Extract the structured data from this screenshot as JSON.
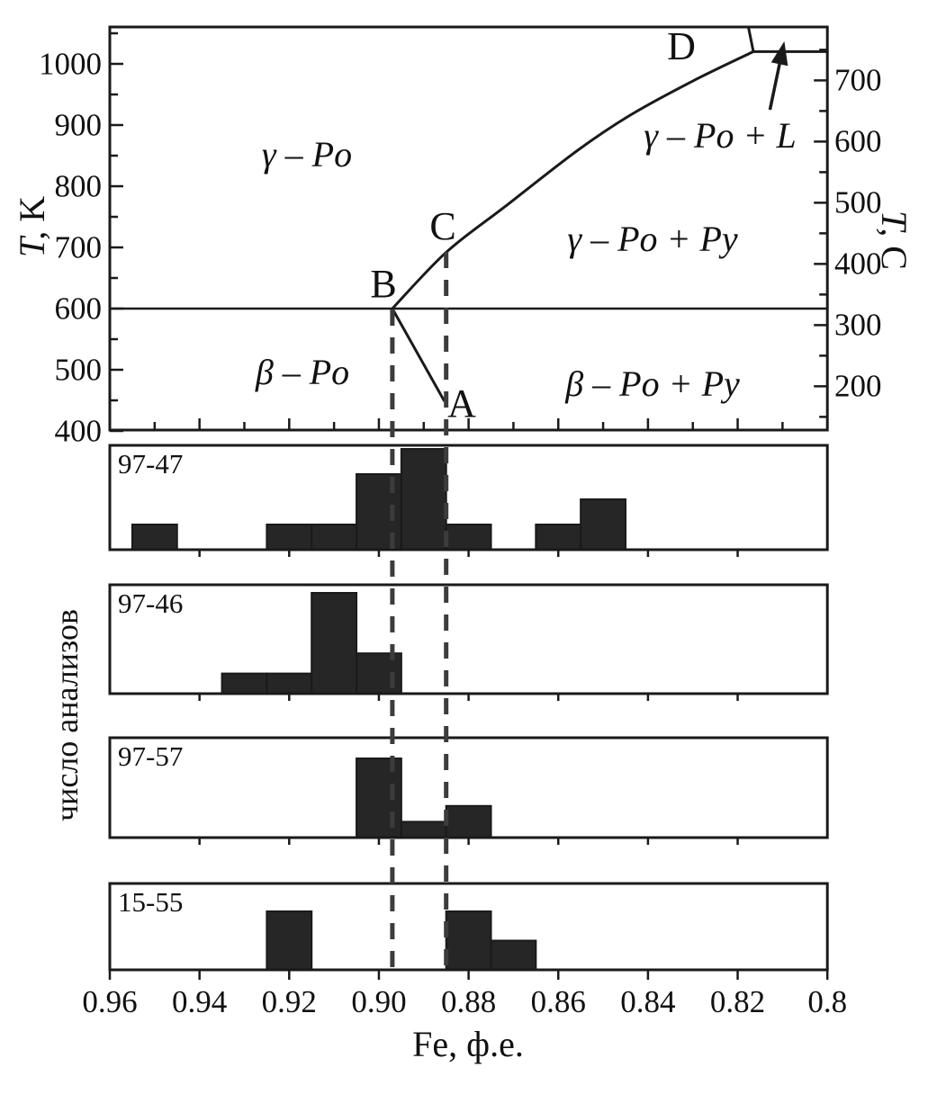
{
  "figure": {
    "background": "#ffffff",
    "ink": "#1a1a1a",
    "bar_fill": "#262626",
    "dash_color": "#3c3c3c"
  },
  "chart_data": [
    {
      "type": "line",
      "id": "pyrrhotite-phase-diagram",
      "x": {
        "label": "Fe, ф.е.",
        "range": [
          0.96,
          0.8
        ],
        "reversed": true
      },
      "y_left": {
        "label": "T, K",
        "range": [
          400,
          1060
        ],
        "ticks": [
          1000,
          900,
          800,
          700,
          600,
          500,
          400
        ]
      },
      "y_right": {
        "label": "T, C",
        "ticks": [
          700,
          600,
          500,
          400,
          300,
          200
        ]
      },
      "grid": false,
      "series": [
        {
          "name": "beta-gamma-transition-line",
          "smooth": false,
          "points": [
            [
              0.96,
              600
            ],
            [
              0.8,
              600
            ]
          ]
        },
        {
          "name": "gamma-po-solvus-B-C-D",
          "smooth": true,
          "points": [
            [
              0.897,
              600
            ],
            [
              0.885,
              692
            ],
            [
              0.872,
              766
            ],
            [
              0.856,
              857
            ],
            [
              0.844,
              916
            ],
            [
              0.83,
              972
            ],
            [
              0.8165,
              1020
            ]
          ]
        },
        {
          "name": "beta-po-solvus-B-A",
          "smooth": false,
          "points": [
            [
              0.897,
              600
            ],
            [
              0.8855,
              450
            ]
          ]
        },
        {
          "name": "liquidus-upper-segment",
          "smooth": false,
          "points": [
            [
              0.8176,
              1060
            ],
            [
              0.8165,
              1020
            ]
          ]
        },
        {
          "name": "solidus-horizontal-segment",
          "smooth": false,
          "points": [
            [
              0.8165,
              1020
            ],
            [
              0.8,
              1020
            ]
          ]
        }
      ],
      "annotations": {
        "regions": [
          {
            "label": "γ – Po",
            "fe": 0.916,
            "t": 852
          },
          {
            "label": "γ – Po + L",
            "fe": 0.824,
            "t": 882
          },
          {
            "label": "γ – Po + Py",
            "fe": 0.839,
            "t": 713
          },
          {
            "label": "β – Po",
            "fe": 0.917,
            "t": 496
          },
          {
            "label": "β – Po + Py",
            "fe": 0.839,
            "t": 476
          }
        ],
        "points": [
          {
            "label": "A",
            "fe": 0.8815,
            "t": 444
          },
          {
            "label": "B",
            "fe": 0.899,
            "t": 640
          },
          {
            "label": "C",
            "fe": 0.8857,
            "t": 734
          },
          {
            "label": "D",
            "fe": 0.8325,
            "t": 1028
          }
        ],
        "arrow": {
          "from": [
            0.8128,
            925
          ],
          "to": [
            0.8096,
            1037
          ]
        }
      },
      "dashed_guides": [
        0.897,
        0.885
      ]
    },
    {
      "type": "bar",
      "id": "composition-histograms",
      "ylabel": "число анализов",
      "xlabel": "Fe, ф.е.",
      "x_ticks": [
        "0.96",
        "0.94",
        "0.92",
        "0.90",
        "0.88",
        "0.86",
        "0.84",
        "0.82",
        "0.8"
      ],
      "bin_width": 0.01,
      "panels": [
        {
          "label": "97-47",
          "bars": [
            {
              "fe": 0.95,
              "n": 1
            },
            {
              "fe": 0.92,
              "n": 1
            },
            {
              "fe": 0.91,
              "n": 1
            },
            {
              "fe": 0.9,
              "n": 3
            },
            {
              "fe": 0.89,
              "n": 4
            },
            {
              "fe": 0.88,
              "n": 1
            },
            {
              "fe": 0.86,
              "n": 1
            },
            {
              "fe": 0.85,
              "n": 2
            }
          ]
        },
        {
          "label": "97-46",
          "bars": [
            {
              "fe": 0.93,
              "n": 1
            },
            {
              "fe": 0.92,
              "n": 1
            },
            {
              "fe": 0.91,
              "n": 5
            },
            {
              "fe": 0.9,
              "n": 2
            }
          ]
        },
        {
          "label": "97-57",
          "bars": [
            {
              "fe": 0.9,
              "n": 5
            },
            {
              "fe": 0.89,
              "n": 1
            },
            {
              "fe": 0.88,
              "n": 2
            }
          ]
        },
        {
          "label": "15-55",
          "bars": [
            {
              "fe": 0.92,
              "n": 2
            },
            {
              "fe": 0.88,
              "n": 2
            },
            {
              "fe": 0.87,
              "n": 1
            }
          ]
        }
      ]
    }
  ]
}
